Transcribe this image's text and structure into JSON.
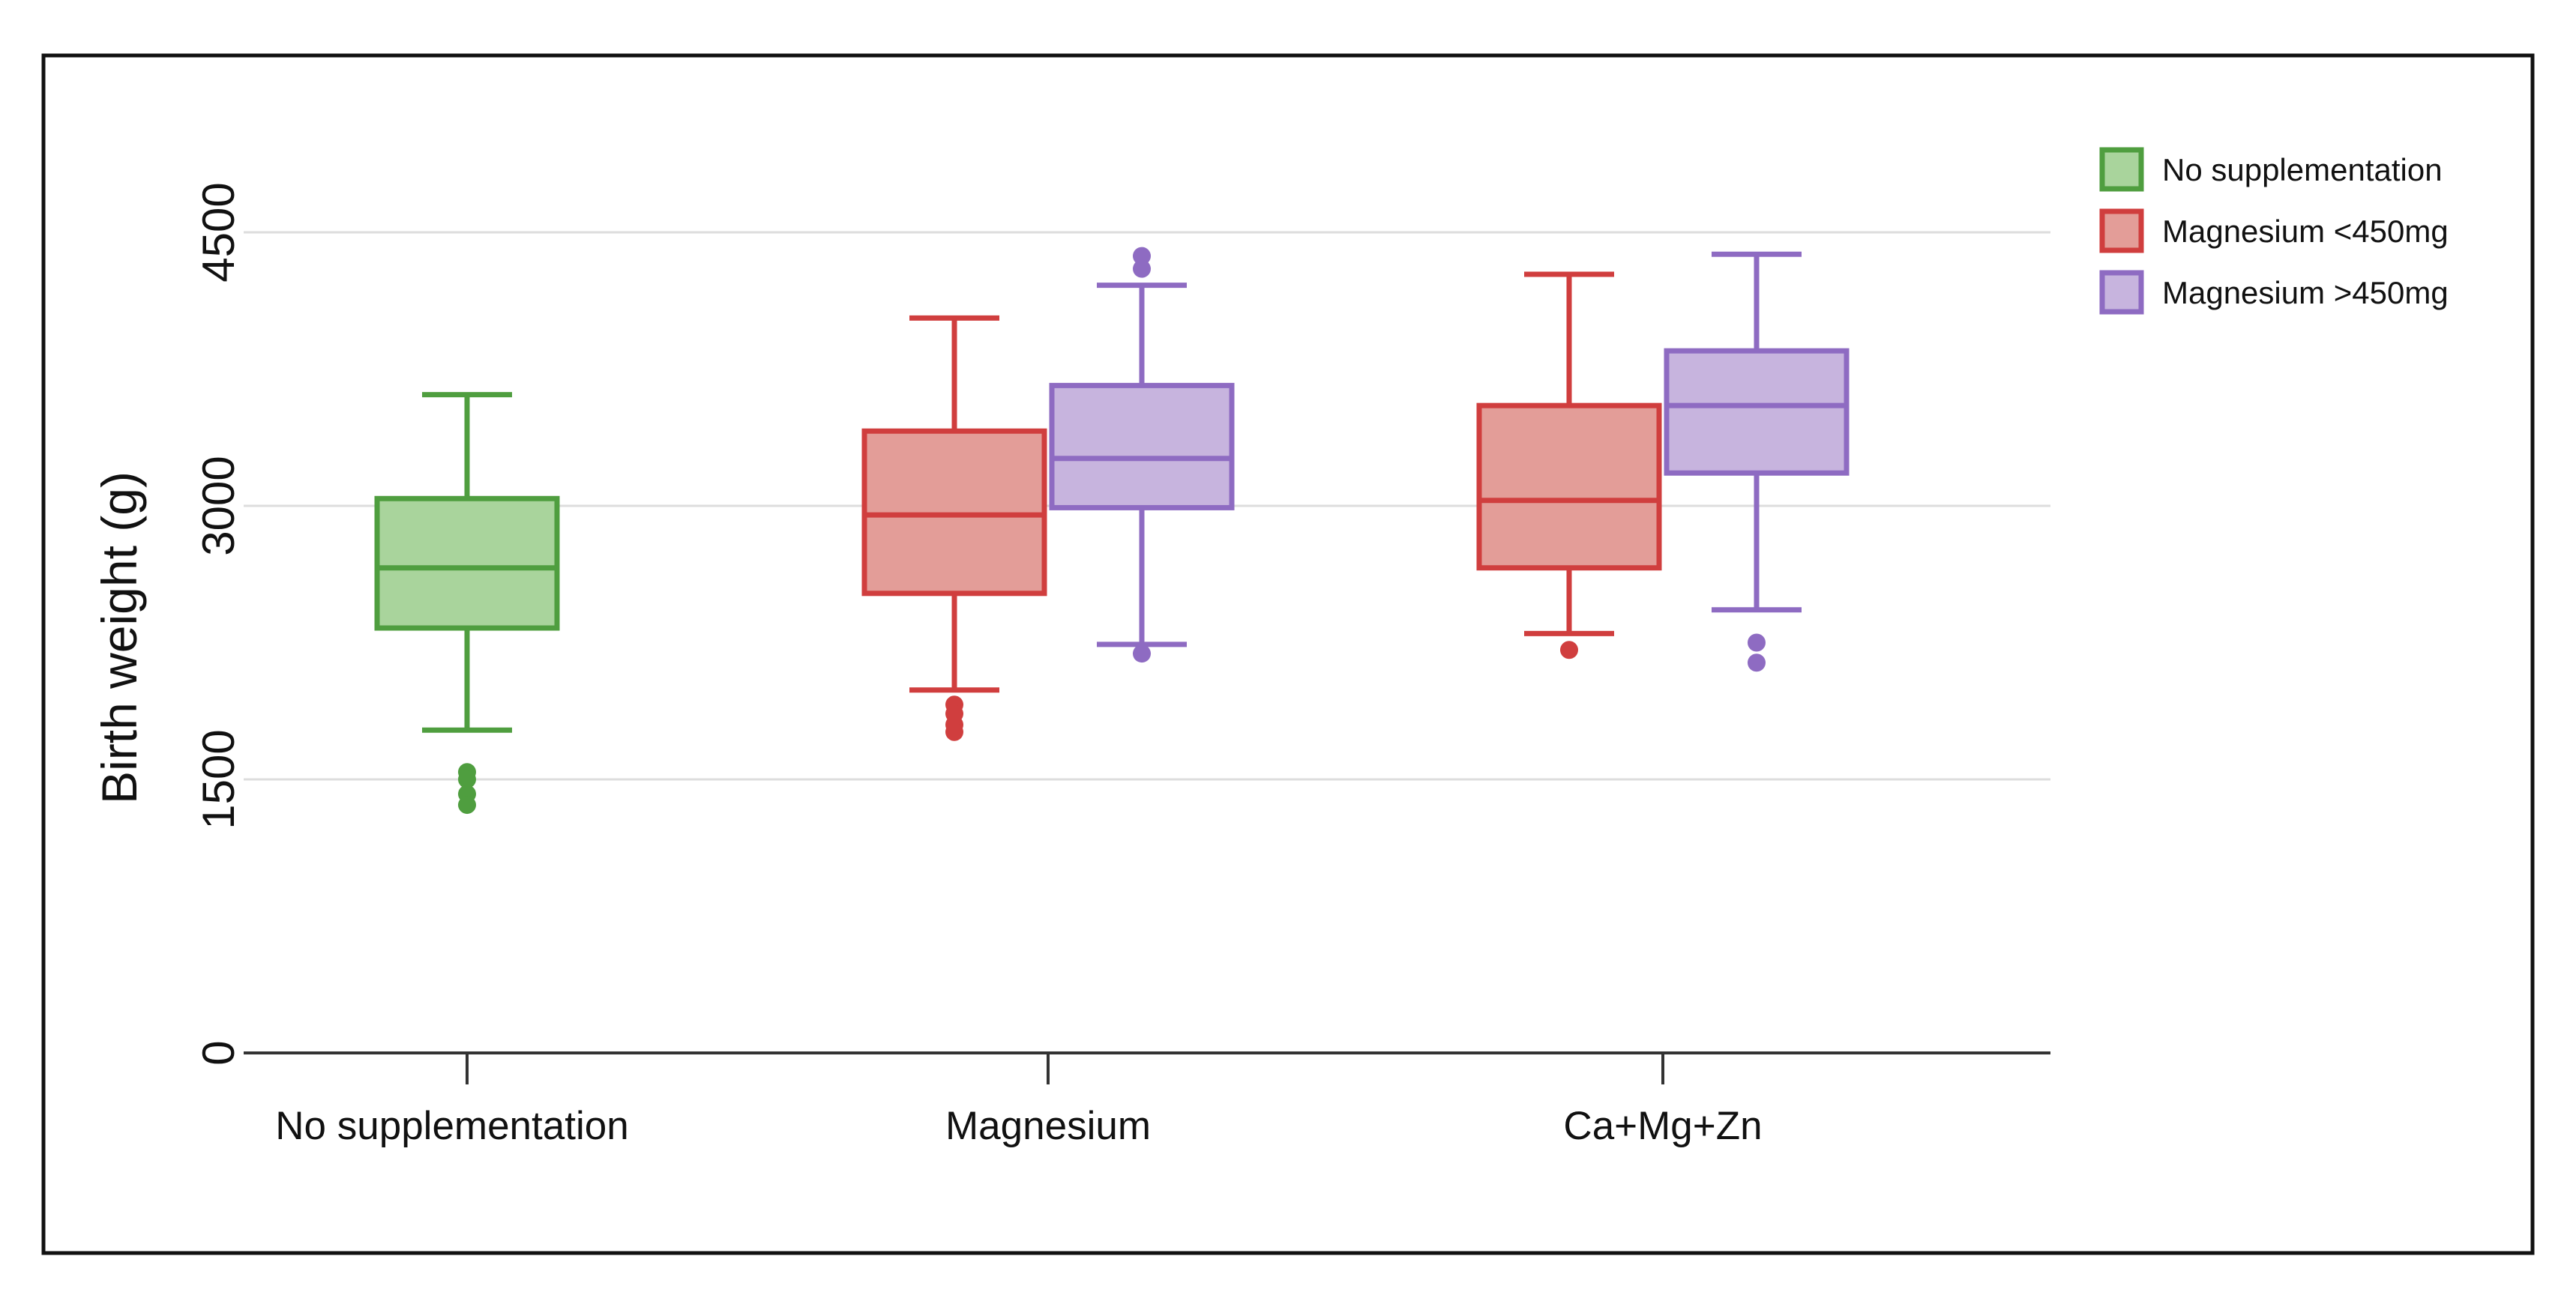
{
  "chart_data": {
    "type": "box",
    "title": "",
    "xlabel": "",
    "ylabel": "Birth weight (g)",
    "ylim": [
      0,
      4500
    ],
    "yticks": [
      0,
      1500,
      3000,
      4500
    ],
    "ytick_labels": [
      "0",
      "1500",
      "3000",
      "4500"
    ],
    "grid": "horizontal",
    "legend_position": "top-right",
    "categories": [
      "No supplementation",
      "Magnesium",
      "Ca+Mg+Zn"
    ],
    "series": [
      {
        "name": "No supplementation",
        "color": "#4f9e3f",
        "fill": "#a9d49c",
        "boxes": [
          {
            "category": "No supplementation",
            "whisker_low": 1770,
            "q1": 2330,
            "median": 2660,
            "q3": 3040,
            "whisker_high": 3610,
            "outliers": [
              1540,
              1500,
              1420,
              1360
            ]
          }
        ]
      },
      {
        "name": "Magnesium <450mg",
        "color": "#d03e3e",
        "fill": "#e39d98",
        "boxes": [
          {
            "category": "Magnesium",
            "whisker_low": 1990,
            "q1": 2520,
            "median": 2950,
            "q3": 3410,
            "whisker_high": 4030,
            "outliers": [
              1910,
              1860,
              1800,
              1760
            ]
          },
          {
            "category": "Ca+Mg+Zn",
            "whisker_low": 2300,
            "q1": 2660,
            "median": 3030,
            "q3": 3550,
            "whisker_high": 4270,
            "outliers": [
              2210
            ]
          }
        ]
      },
      {
        "name": "Magnesium >450mg",
        "color": "#8e6bc2",
        "fill": "#c7b4de",
        "boxes": [
          {
            "category": "Magnesium",
            "whisker_low": 2240,
            "q1": 2990,
            "median": 3260,
            "q3": 3660,
            "whisker_high": 4210,
            "outliers": [
              4370,
              4300,
              2190
            ]
          },
          {
            "category": "Ca+Mg+Zn",
            "whisker_low": 2430,
            "q1": 3180,
            "median": 3550,
            "q3": 3850,
            "whisker_high": 4380,
            "outliers": [
              2250,
              2140
            ]
          }
        ]
      }
    ]
  },
  "colors": {
    "frame": "#111111",
    "grid": "#dddddd",
    "axis": "#333333"
  }
}
